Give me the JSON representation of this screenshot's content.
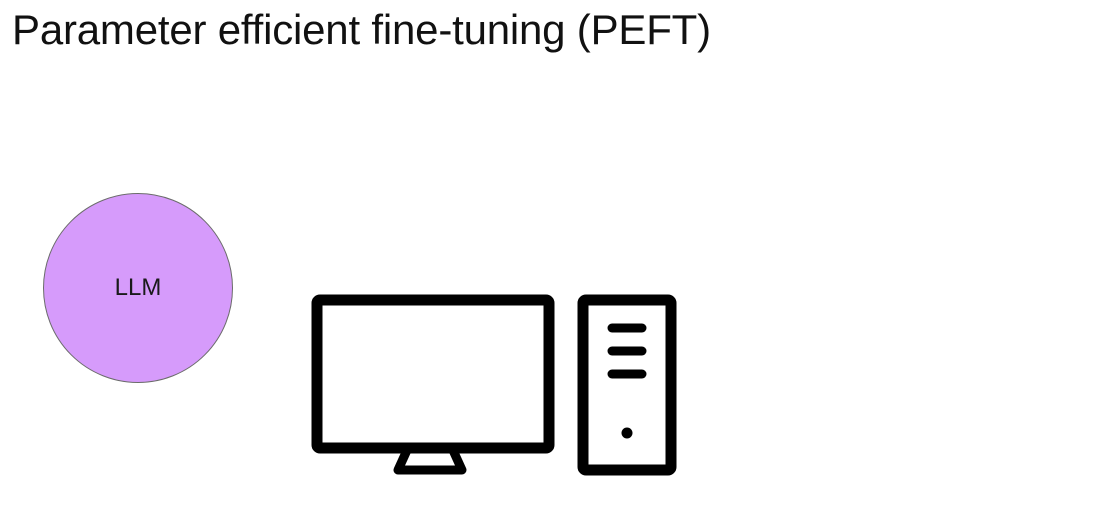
{
  "title": "Parameter efficient fine-tuning (PEFT)",
  "llm": {
    "label": "LLM",
    "fill_color": "#d69bfb"
  },
  "computer": {
    "icon": "desktop-computer-icon",
    "stroke_color": "#000000"
  }
}
